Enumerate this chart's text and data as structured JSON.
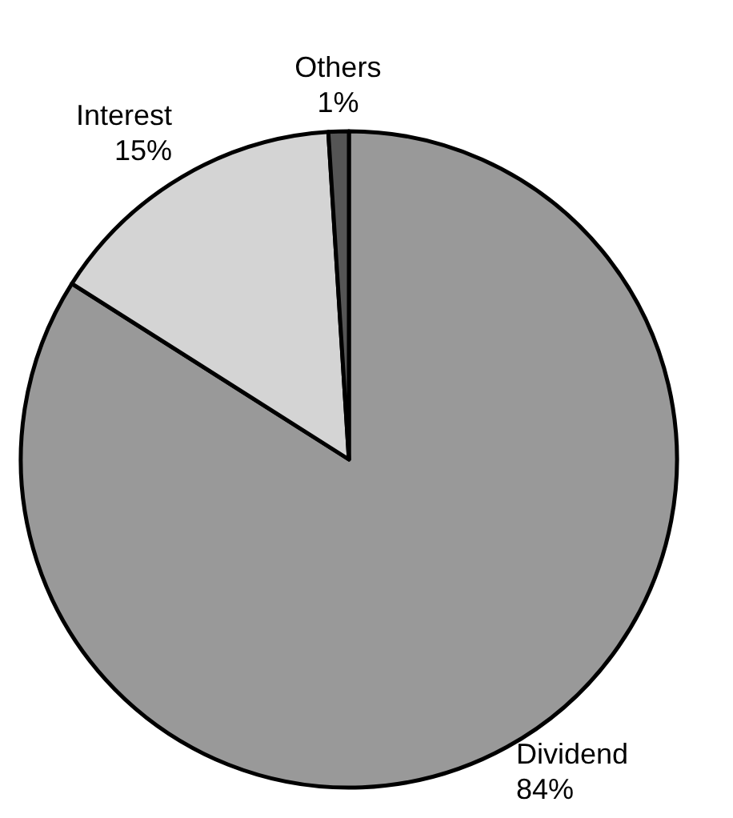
{
  "chart_data": {
    "type": "pie",
    "categories": [
      "Dividend",
      "Interest",
      "Others"
    ],
    "values": [
      84,
      15,
      1
    ],
    "colors": [
      "#999999",
      "#d4d4d4",
      "#555555"
    ],
    "value_labels": [
      "84%",
      "15%",
      "1%"
    ]
  }
}
